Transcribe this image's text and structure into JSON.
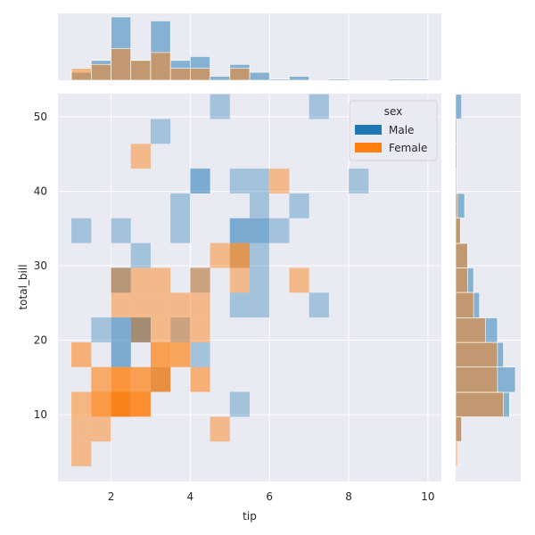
{
  "chart_data": {
    "type": "jointplot-hist2d",
    "xlabel": "tip",
    "ylabel": "total_bill",
    "xlim": [
      0.66,
      10.34
    ],
    "ylim": [
      1.03,
      53.1
    ],
    "x_ticks": [
      2,
      4,
      6,
      8,
      10
    ],
    "y_ticks": [
      10,
      20,
      30,
      40,
      50
    ],
    "grid": true,
    "legend": {
      "title": "sex",
      "placement": "top-right",
      "entries": [
        {
          "name": "Male",
          "color": "#1f77b4"
        },
        {
          "name": "Female",
          "color": "#ff7f0e"
        }
      ]
    },
    "bins": {
      "x_edges_start": 1.0,
      "x_width": 0.5,
      "y_edges_start": 3.07,
      "y_width": 3.33
    },
    "series": [
      {
        "name": "Male",
        "color": "#1f77b4",
        "cells": [
          [
            7,
            14,
            0.35
          ],
          [
            12,
            14,
            0.35
          ],
          [
            4,
            13,
            0.35
          ],
          [
            6,
            11,
            0.55
          ],
          [
            8,
            11,
            0.35
          ],
          [
            9,
            11,
            0.35
          ],
          [
            14,
            11,
            0.35
          ],
          [
            5,
            10,
            0.35
          ],
          [
            9,
            10,
            0.35
          ],
          [
            11,
            10,
            0.35
          ],
          [
            0,
            9,
            0.35
          ],
          [
            2,
            9,
            0.35
          ],
          [
            5,
            9,
            0.35
          ],
          [
            8,
            9,
            0.55
          ],
          [
            9,
            9,
            0.55
          ],
          [
            10,
            9,
            0.35
          ],
          [
            3,
            8,
            0.35
          ],
          [
            8,
            8,
            0.35
          ],
          [
            9,
            8,
            0.35
          ],
          [
            2,
            7,
            0.55
          ],
          [
            6,
            7,
            0.35
          ],
          [
            9,
            7,
            0.35
          ],
          [
            8,
            6,
            0.35
          ],
          [
            9,
            6,
            0.35
          ],
          [
            12,
            6,
            0.35
          ],
          [
            1,
            5,
            0.35
          ],
          [
            2,
            5,
            0.55
          ],
          [
            3,
            5,
            0.7
          ],
          [
            5,
            5,
            0.35
          ],
          [
            2,
            4,
            0.55
          ],
          [
            6,
            4,
            0.35
          ],
          [
            4,
            3,
            0.35
          ],
          [
            2,
            2,
            0.35
          ],
          [
            8,
            2,
            0.35
          ]
        ],
        "x_marginal": [
          {
            "bin": [
              1.0,
              1.5
            ],
            "count": 2
          },
          {
            "bin": [
              1.5,
              2.0
            ],
            "count": 5
          },
          {
            "bin": [
              2.0,
              2.5
            ],
            "count": 16
          },
          {
            "bin": [
              2.5,
              3.0
            ],
            "count": 5
          },
          {
            "bin": [
              3.0,
              3.5
            ],
            "count": 15
          },
          {
            "bin": [
              3.5,
              4.0
            ],
            "count": 5
          },
          {
            "bin": [
              4.0,
              4.5
            ],
            "count": 6
          },
          {
            "bin": [
              4.5,
              5.0
            ],
            "count": 1
          },
          {
            "bin": [
              5.0,
              5.5
            ],
            "count": 4
          },
          {
            "bin": [
              5.5,
              6.0
            ],
            "count": 2
          },
          {
            "bin": [
              6.0,
              6.5
            ],
            "count": 0.3
          },
          {
            "bin": [
              6.5,
              7.0
            ],
            "count": 1
          },
          {
            "bin": [
              7.5,
              8.0
            ],
            "count": 0.3
          },
          {
            "bin": [
              9.0,
              9.5
            ],
            "count": 0.3
          },
          {
            "bin": [
              9.5,
              10.0
            ],
            "count": 0.3
          }
        ],
        "y_marginal": [
          {
            "bin": [
              6.4,
              9.7
            ],
            "count": 1
          },
          {
            "bin": [
              9.7,
              13.0
            ],
            "count": 9
          },
          {
            "bin": [
              13.0,
              16.4
            ],
            "count": 10
          },
          {
            "bin": [
              16.4,
              19.7
            ],
            "count": 8
          },
          {
            "bin": [
              19.7,
              23.0
            ],
            "count": 7
          },
          {
            "bin": [
              23.0,
              26.4
            ],
            "count": 4
          },
          {
            "bin": [
              26.4,
              29.7
            ],
            "count": 3
          },
          {
            "bin": [
              29.7,
              33.0
            ],
            "count": 2
          },
          {
            "bin": [
              33.0,
              36.4
            ],
            "count": 0.8
          },
          {
            "bin": [
              36.4,
              39.7
            ],
            "count": 1.5
          },
          {
            "bin": [
              43.0,
              46.4
            ],
            "count": 0.2
          },
          {
            "bin": [
              46.4,
              49.7
            ],
            "count": 0.2
          },
          {
            "bin": [
              49.7,
              53.0
            ],
            "count": 1
          }
        ]
      },
      {
        "name": "Female",
        "color": "#ff7f0e",
        "cells": [
          [
            3,
            12,
            0.45
          ],
          [
            10,
            11,
            0.45
          ],
          [
            7,
            8,
            0.45
          ],
          [
            8,
            8,
            0.65
          ],
          [
            2,
            7,
            0.45
          ],
          [
            3,
            7,
            0.45
          ],
          [
            4,
            7,
            0.45
          ],
          [
            6,
            7,
            0.45
          ],
          [
            8,
            7,
            0.45
          ],
          [
            11,
            7,
            0.45
          ],
          [
            2,
            6,
            0.45
          ],
          [
            3,
            6,
            0.45
          ],
          [
            4,
            6,
            0.45
          ],
          [
            5,
            6,
            0.45
          ],
          [
            6,
            6,
            0.45
          ],
          [
            3,
            5,
            0.45
          ],
          [
            4,
            5,
            0.45
          ],
          [
            5,
            5,
            0.45
          ],
          [
            6,
            5,
            0.45
          ],
          [
            0,
            4,
            0.55
          ],
          [
            4,
            4,
            0.7
          ],
          [
            5,
            4,
            0.65
          ],
          [
            1,
            3,
            0.6
          ],
          [
            2,
            3,
            0.8
          ],
          [
            3,
            3,
            0.7
          ],
          [
            4,
            3,
            0.75
          ],
          [
            6,
            3,
            0.55
          ],
          [
            0,
            2,
            0.5
          ],
          [
            1,
            2,
            0.75
          ],
          [
            2,
            2,
            0.95
          ],
          [
            3,
            2,
            0.85
          ],
          [
            0,
            1,
            0.45
          ],
          [
            1,
            1,
            0.45
          ],
          [
            7,
            1,
            0.45
          ],
          [
            0,
            0,
            0.45
          ]
        ],
        "x_marginal": [
          {
            "bin": [
              1.0,
              1.5
            ],
            "count": 3
          },
          {
            "bin": [
              1.5,
              2.0
            ],
            "count": 4
          },
          {
            "bin": [
              2.0,
              2.5
            ],
            "count": 8
          },
          {
            "bin": [
              2.5,
              3.0
            ],
            "count": 5
          },
          {
            "bin": [
              3.0,
              3.5
            ],
            "count": 7
          },
          {
            "bin": [
              3.5,
              4.0
            ],
            "count": 3
          },
          {
            "bin": [
              4.0,
              4.5
            ],
            "count": 3
          },
          {
            "bin": [
              5.0,
              5.5
            ],
            "count": 3
          }
        ],
        "y_marginal": [
          {
            "bin": [
              3.1,
              6.4
            ],
            "count": 0.3
          },
          {
            "bin": [
              6.4,
              9.7
            ],
            "count": 1
          },
          {
            "bin": [
              9.7,
              13.0
            ],
            "count": 8
          },
          {
            "bin": [
              13.0,
              16.4
            ],
            "count": 7
          },
          {
            "bin": [
              16.4,
              19.7
            ],
            "count": 7
          },
          {
            "bin": [
              19.7,
              23.0
            ],
            "count": 5
          },
          {
            "bin": [
              23.0,
              26.4
            ],
            "count": 3
          },
          {
            "bin": [
              26.4,
              29.7
            ],
            "count": 2
          },
          {
            "bin": [
              29.7,
              33.0
            ],
            "count": 2
          },
          {
            "bin": [
              33.0,
              36.4
            ],
            "count": 0.8
          },
          {
            "bin": [
              36.4,
              39.7
            ],
            "count": 0.3
          },
          {
            "bin": [
              39.7,
              43.0
            ],
            "count": 0.2
          },
          {
            "bin": [
              43.0,
              46.4
            ],
            "count": 0.2
          }
        ]
      }
    ]
  }
}
